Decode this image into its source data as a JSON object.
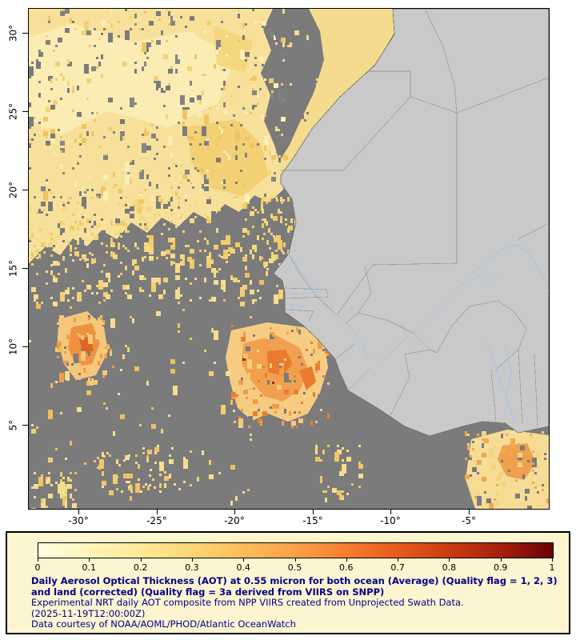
{
  "map": {
    "lat_ticks": [
      "30°",
      "25°",
      "20°",
      "15°",
      "10°",
      "5°"
    ],
    "lon_ticks": [
      "-30°",
      "-25°",
      "-20°",
      "-15°",
      "-10°",
      "-5°"
    ]
  },
  "legend": {
    "ticks": [
      "0",
      "0.1",
      "0.2",
      "0.3",
      "0.4",
      "0.5",
      "0.6",
      "0.7",
      "0.8",
      "0.9",
      "1"
    ],
    "title": "Daily Aerosol Optical Thickness (AOT) at 0.55 micron for both ocean (Average) (Quality flag = 1, 2, 3) and land (corrected) (Quality flag = 3a derived from VIIRS on SNPP)",
    "subtitle": "Experimental NRT daily AOT composite from NPP VIIRS created from Unprojected Swath Data.",
    "timestamp": "(2025-11-19T12:00:00Z)",
    "credit": "Data courtesy of NOAA/AOML/PHOD/Atlantic OceanWatch"
  },
  "colors": {
    "ocean_no_data": "#7b7b7b",
    "land": "#C9C9C9",
    "rivers": "#A3C6E7",
    "legend_background": "#FCF5CF",
    "legend_text": "#00008B",
    "colormap_stops": [
      "#FFFDE0",
      "#FEF5BA",
      "#FEE896",
      "#FDD576",
      "#FDBC58",
      "#FCA046",
      "#F57D2E",
      "#E65A1C",
      "#C93C10",
      "#A3200B",
      "#640004"
    ]
  },
  "chart_data": {
    "type": "heatmap",
    "title": "Daily Aerosol Optical Thickness (AOT) at 0.55 micron",
    "colorbar": {
      "min": 0,
      "max": 1,
      "tick_values": [
        0,
        0.1,
        0.2,
        0.3,
        0.4,
        0.5,
        0.6,
        0.7,
        0.8,
        0.9,
        1
      ]
    },
    "x_axis_ticks_lon_deg": [
      -30,
      -25,
      -20,
      -15,
      -10,
      -5
    ],
    "y_axis_ticks_lat_deg": [
      30,
      25,
      20,
      15,
      10,
      5
    ]
  }
}
